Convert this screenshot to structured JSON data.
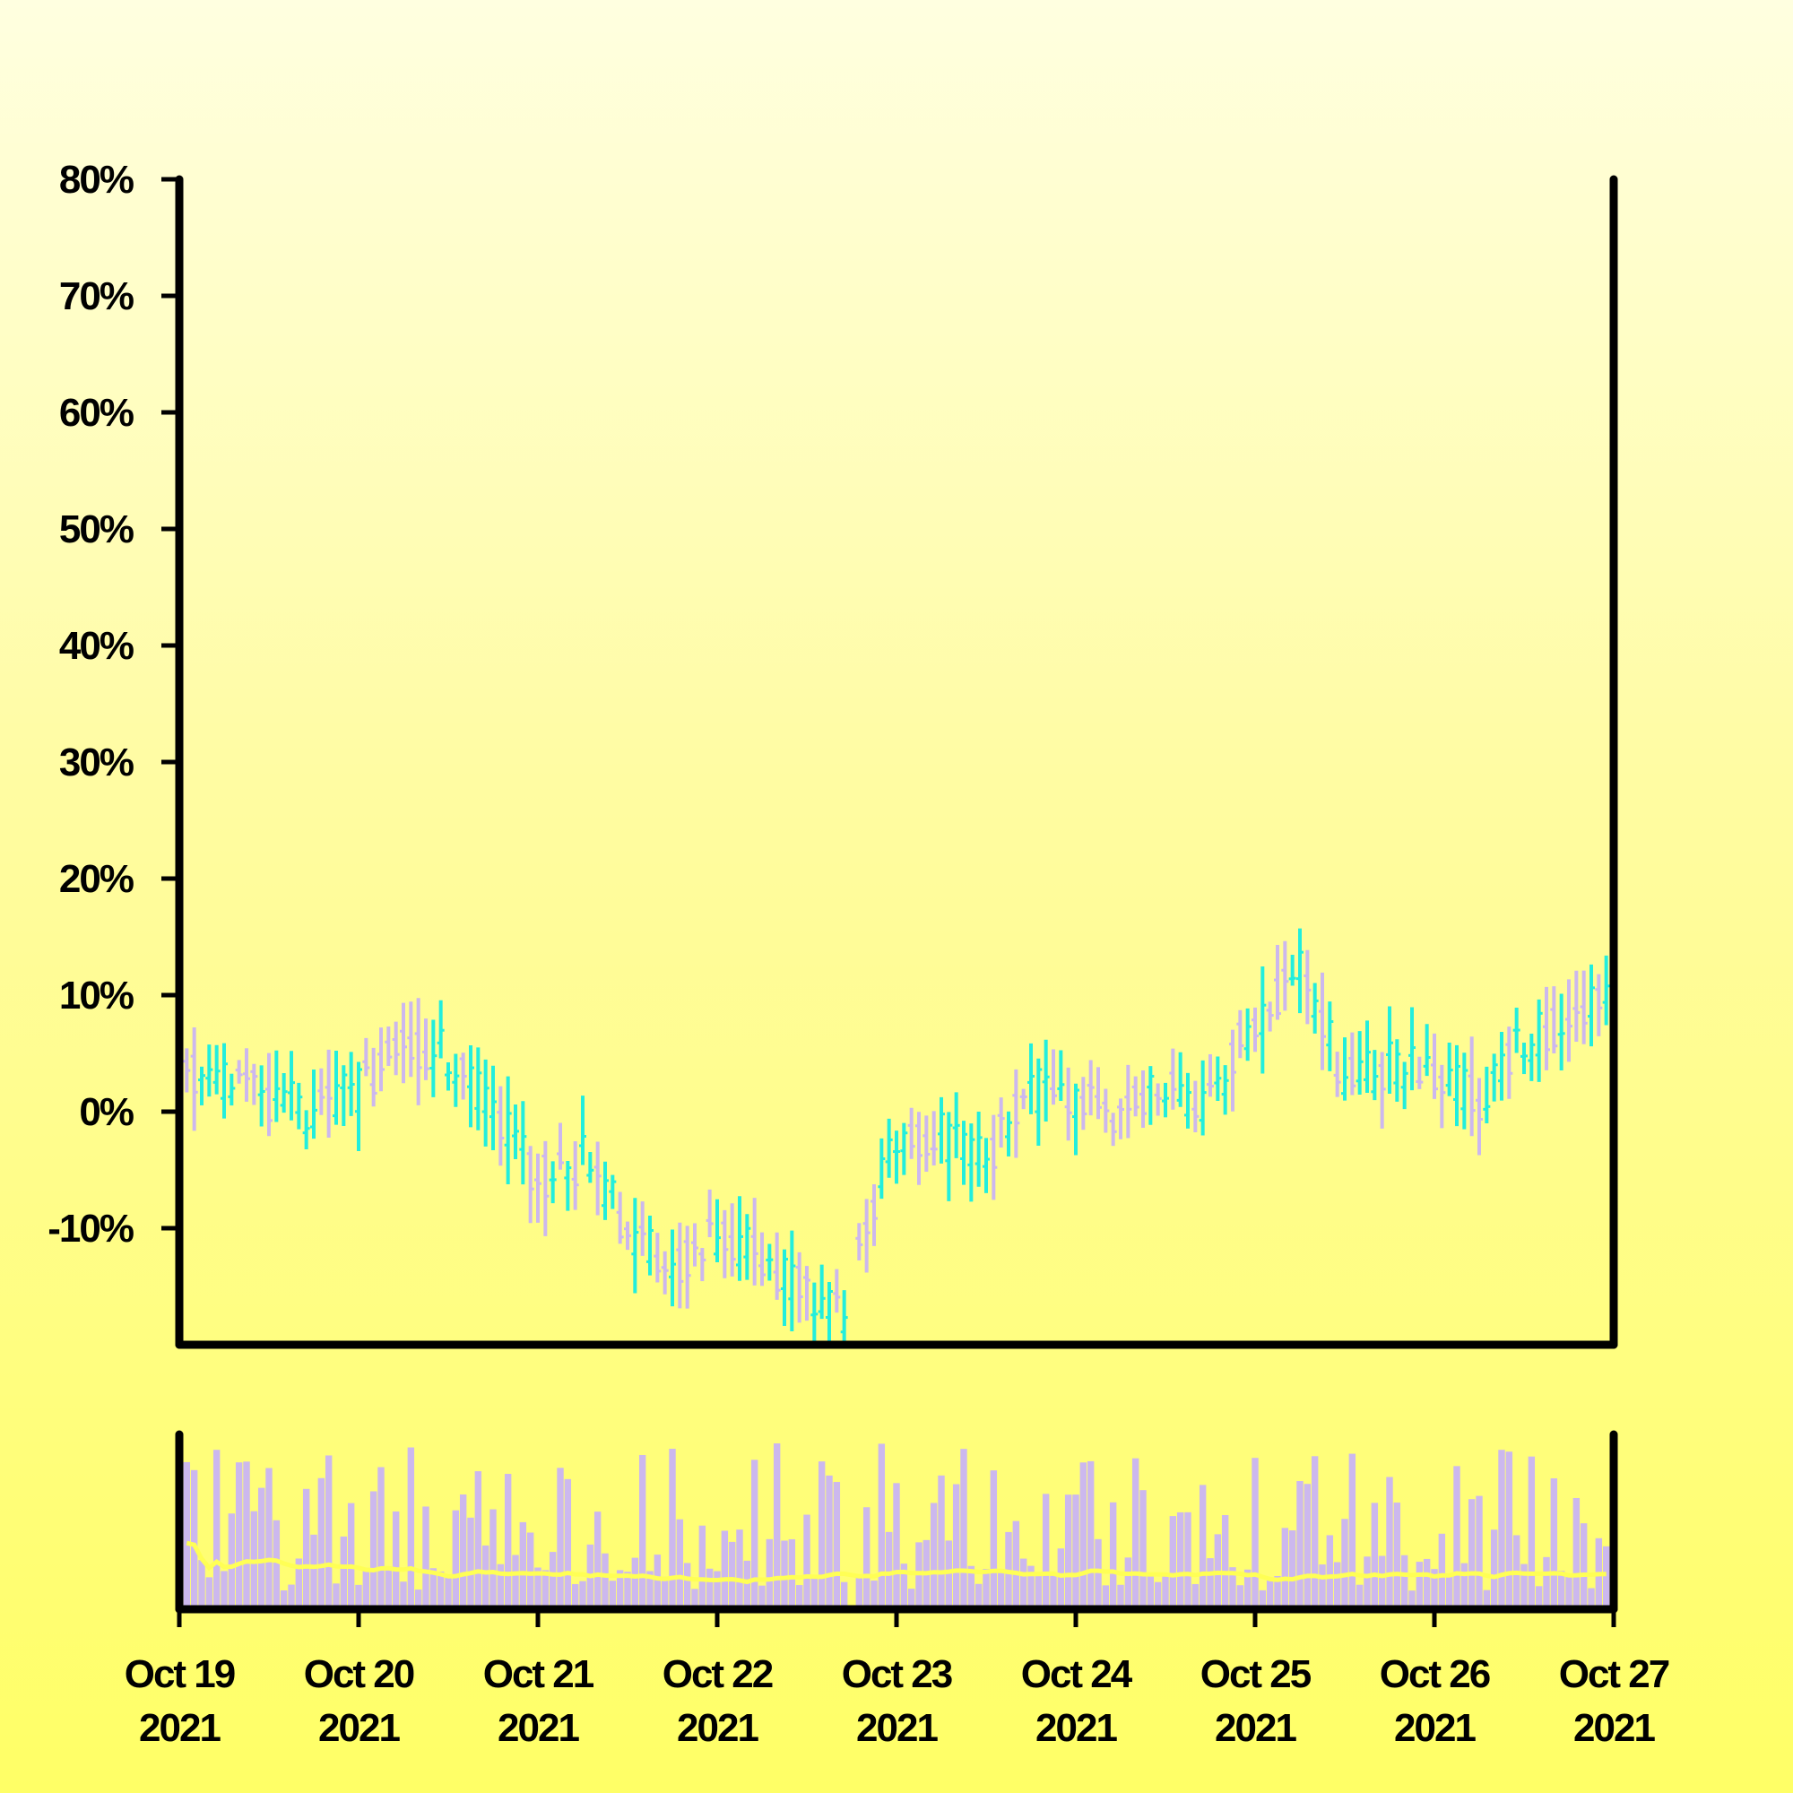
{
  "chart_data": {
    "type": "ohlc",
    "price_panel": {
      "y_axis": {
        "format": "percent",
        "min": -20,
        "max": 80,
        "ticks": [
          -10,
          0,
          10,
          20,
          30,
          40,
          50,
          60,
          70,
          80
        ],
        "tick_labels": [
          "-10%",
          "0%",
          "10%",
          "20%",
          "30%",
          "40%",
          "50%",
          "60%",
          "70%",
          "80%"
        ]
      },
      "series_points": [
        {
          "x": "2021-10-19 00:00",
          "y": 3
        },
        {
          "x": "2021-10-19 06:00",
          "y": 3
        },
        {
          "x": "2021-10-19 12:00",
          "y": 1
        },
        {
          "x": "2021-10-19 18:00",
          "y": 0
        },
        {
          "x": "2021-10-20 00:00",
          "y": 2
        },
        {
          "x": "2021-10-20 06:00",
          "y": 6
        },
        {
          "x": "2021-10-20 12:00",
          "y": 5
        },
        {
          "x": "2021-10-20 18:00",
          "y": 0
        },
        {
          "x": "2021-10-21 00:00",
          "y": -6
        },
        {
          "x": "2021-10-21 06:00",
          "y": -4
        },
        {
          "x": "2021-10-21 12:00",
          "y": -10
        },
        {
          "x": "2021-10-21 18:00",
          "y": -13
        },
        {
          "x": "2021-10-22 00:00",
          "y": -11
        },
        {
          "x": "2021-10-22 06:00",
          "y": -12
        },
        {
          "x": "2021-10-22 12:00",
          "y": -16
        },
        {
          "x": "2021-10-22 17:00",
          "y": -17
        },
        {
          "x": "2021-10-22 19:00",
          "y": -10
        },
        {
          "x": "2021-10-23 00:00",
          "y": -3
        },
        {
          "x": "2021-10-23 06:00",
          "y": -2
        },
        {
          "x": "2021-10-23 12:00",
          "y": -4
        },
        {
          "x": "2021-10-23 18:00",
          "y": 2
        },
        {
          "x": "2021-10-24 00:00",
          "y": 1
        },
        {
          "x": "2021-10-24 06:00",
          "y": 0
        },
        {
          "x": "2021-10-24 12:00",
          "y": 2
        },
        {
          "x": "2021-10-24 18:00",
          "y": 1
        },
        {
          "x": "2021-10-25 00:00",
          "y": 8
        },
        {
          "x": "2021-10-25 06:00",
          "y": 12
        },
        {
          "x": "2021-10-25 12:00",
          "y": 3
        },
        {
          "x": "2021-10-25 18:00",
          "y": 4
        },
        {
          "x": "2021-10-26 00:00",
          "y": 3
        },
        {
          "x": "2021-10-26 06:00",
          "y": 1
        },
        {
          "x": "2021-10-26 12:00",
          "y": 6
        },
        {
          "x": "2021-10-26 18:00",
          "y": 8
        },
        {
          "x": "2021-10-27 00:00",
          "y": 11
        }
      ],
      "colors": {
        "up": "#22eedd",
        "down": "#ccb8ee"
      }
    },
    "volume_panel": {
      "bar_color": "#ccb8ee",
      "moving_average_color": "#ffff55"
    },
    "x_axis": {
      "start": "2021-10-19",
      "end": "2021-10-27",
      "tick_labels": [
        {
          "date": "2021-10-19",
          "line1": "Oct 19",
          "line2": "2021"
        },
        {
          "date": "2021-10-20",
          "line1": "Oct 20",
          "line2": "2021"
        },
        {
          "date": "2021-10-21",
          "line1": "Oct 21",
          "line2": "2021"
        },
        {
          "date": "2021-10-22",
          "line1": "Oct 22",
          "line2": "2021"
        },
        {
          "date": "2021-10-23",
          "line1": "Oct 23",
          "line2": "2021"
        },
        {
          "date": "2021-10-24",
          "line1": "Oct 24",
          "line2": "2021"
        },
        {
          "date": "2021-10-25",
          "line1": "Oct 25",
          "line2": "2021"
        },
        {
          "date": "2021-10-26",
          "line1": "Oct 26",
          "line2": "2021"
        },
        {
          "date": "2021-10-27",
          "line1": "Oct 27",
          "line2": "2021"
        }
      ]
    }
  }
}
